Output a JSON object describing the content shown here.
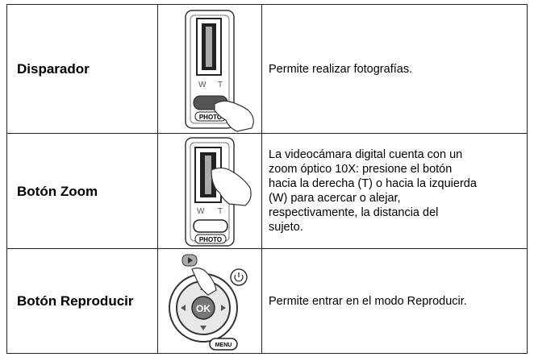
{
  "table": {
    "rows": [
      {
        "label": "Disparador",
        "image_labels": [
          "W",
          "T",
          "PHOTO"
        ],
        "description": [
          "Permite realizar fotografías."
        ]
      },
      {
        "label": "Botón Zoom",
        "image_labels": [
          "W",
          "T",
          "PHOTO"
        ],
        "description": [
          "La videocámara digital cuenta con un",
          "zoom óptico 10X: presione el botón",
          "hacia la derecha (T) o hacia la izquierda",
          "(W) para acercar o alejar,",
          "respectivamente, la distancia del",
          "sujeto."
        ]
      },
      {
        "label": "Botón Reproducir",
        "image_labels": [
          "OK",
          "MENU"
        ],
        "description": [
          "Permite entrar en el modo Reproducir."
        ]
      }
    ]
  }
}
